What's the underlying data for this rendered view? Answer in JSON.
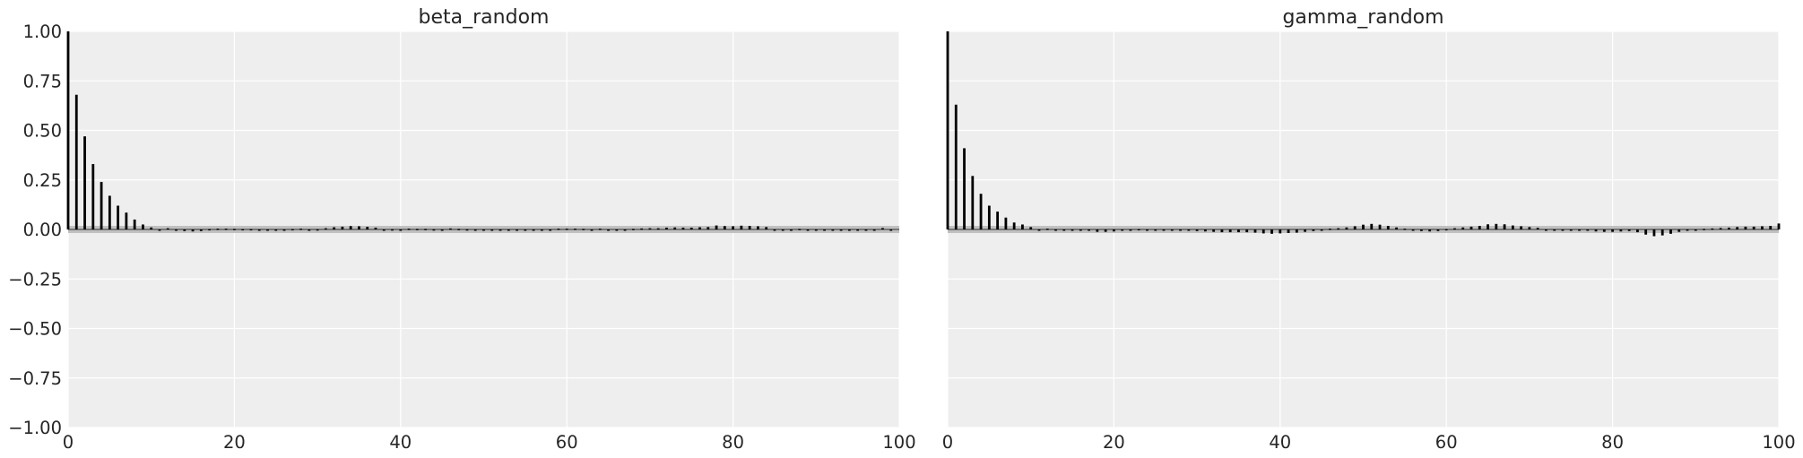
{
  "chart_data": [
    {
      "type": "bar",
      "title": "beta_random",
      "xlabel": "",
      "ylabel": "",
      "xlim": [
        0,
        100
      ],
      "ylim": [
        -1.0,
        1.0
      ],
      "xticks": [
        "0",
        "20",
        "40",
        "60",
        "80",
        "100"
      ],
      "yticks": [
        "1.00",
        "0.75",
        "0.50",
        "0.25",
        "0.00",
        "−0.25",
        "−0.50",
        "−0.75",
        "−1.00"
      ],
      "grid": true,
      "confidence_band": [
        -0.018,
        0.018
      ],
      "x": [
        0,
        1,
        2,
        3,
        4,
        5,
        6,
        7,
        8,
        9,
        10,
        11,
        12,
        13,
        14,
        15,
        16,
        17,
        18,
        19,
        20,
        21,
        22,
        23,
        24,
        25,
        26,
        27,
        28,
        29,
        30,
        31,
        32,
        33,
        34,
        35,
        36,
        37,
        38,
        39,
        40,
        41,
        42,
        43,
        44,
        45,
        46,
        47,
        48,
        49,
        50,
        51,
        52,
        53,
        54,
        55,
        56,
        57,
        58,
        59,
        60,
        61,
        62,
        63,
        64,
        65,
        66,
        67,
        68,
        69,
        70,
        71,
        72,
        73,
        74,
        75,
        76,
        77,
        78,
        79,
        80,
        81,
        82,
        83,
        84,
        85,
        86,
        87,
        88,
        89,
        90,
        91,
        92,
        93,
        94,
        95,
        96,
        97,
        98,
        99
      ],
      "values": [
        1.0,
        0.68,
        0.47,
        0.33,
        0.24,
        0.17,
        0.12,
        0.085,
        0.05,
        0.025,
        0.01,
        0.0,
        0.006,
        -0.004,
        -0.008,
        -0.01,
        -0.008,
        0.002,
        0.004,
        0.004,
        0.003,
        0.002,
        0.002,
        -0.003,
        -0.005,
        -0.004,
        -0.004,
        0.002,
        0.004,
        0.0,
        0.001,
        0.006,
        0.011,
        0.014,
        0.017,
        0.016,
        0.013,
        0.009,
        0.0,
        0.001,
        0.0,
        0.004,
        0.003,
        0.003,
        0.001,
        0.0,
        0.005,
        0.003,
        0.001,
        -0.003,
        -0.004,
        -0.003,
        -0.002,
        0.0,
        0.0,
        -0.003,
        0.0,
        0.0,
        -0.003,
        0.004,
        0.004,
        0.004,
        0.003,
        0.0,
        0.004,
        0.0,
        0.0,
        0.0,
        0.003,
        0.005,
        0.006,
        0.006,
        0.009,
        0.01,
        0.009,
        0.009,
        0.011,
        0.012,
        0.02,
        0.017,
        0.016,
        0.019,
        0.018,
        0.016,
        0.012,
        0.0,
        0.0,
        0.0,
        0.003,
        0.0,
        -0.004,
        -0.004,
        -0.004,
        0.0,
        -0.005,
        -0.006,
        -0.006,
        0.0,
        0.007,
        0.0
      ]
    },
    {
      "type": "bar",
      "title": "gamma_random",
      "xlabel": "",
      "ylabel": "",
      "xlim": [
        0,
        100
      ],
      "ylim": [
        -1.0,
        1.0
      ],
      "xticks": [
        "0",
        "20",
        "40",
        "60",
        "80",
        "100"
      ],
      "yticks": [],
      "grid": true,
      "confidence_band": [
        -0.018,
        0.018
      ],
      "x": [
        0,
        1,
        2,
        3,
        4,
        5,
        6,
        7,
        8,
        9,
        10,
        11,
        12,
        13,
        14,
        15,
        16,
        17,
        18,
        19,
        20,
        21,
        22,
        23,
        24,
        25,
        26,
        27,
        28,
        29,
        30,
        31,
        32,
        33,
        34,
        35,
        36,
        37,
        38,
        39,
        40,
        41,
        42,
        43,
        44,
        45,
        46,
        47,
        48,
        49,
        50,
        51,
        52,
        53,
        54,
        55,
        56,
        57,
        58,
        59,
        60,
        61,
        62,
        63,
        64,
        65,
        66,
        67,
        68,
        69,
        70,
        71,
        72,
        73,
        74,
        75,
        76,
        77,
        78,
        79,
        80,
        81,
        82,
        83,
        84,
        85,
        86,
        87,
        88,
        89,
        90,
        91,
        92,
        93,
        94,
        95,
        96,
        97,
        98,
        99,
        100
      ],
      "values": [
        1.0,
        0.63,
        0.41,
        0.27,
        0.18,
        0.12,
        0.09,
        0.06,
        0.035,
        0.025,
        0.012,
        0.0,
        0.004,
        0.0,
        0.0,
        -0.004,
        -0.004,
        -0.006,
        -0.012,
        -0.012,
        -0.01,
        -0.006,
        0.0,
        0.002,
        0.0,
        -0.002,
        -0.004,
        -0.004,
        -0.006,
        -0.006,
        -0.008,
        -0.01,
        -0.012,
        -0.014,
        -0.014,
        -0.014,
        -0.014,
        -0.016,
        -0.02,
        -0.022,
        -0.02,
        -0.018,
        -0.016,
        -0.012,
        -0.008,
        0.0,
        0.004,
        0.006,
        0.01,
        0.016,
        0.024,
        0.028,
        0.024,
        0.018,
        0.01,
        0.004,
        -0.004,
        -0.008,
        -0.01,
        -0.008,
        0.002,
        0.006,
        0.01,
        0.014,
        0.018,
        0.026,
        0.028,
        0.026,
        0.02,
        0.016,
        0.012,
        0.008,
        0.0,
        -0.006,
        -0.004,
        -0.002,
        0.0,
        -0.006,
        -0.01,
        -0.012,
        -0.012,
        -0.01,
        -0.008,
        -0.014,
        -0.026,
        -0.034,
        -0.03,
        -0.022,
        -0.012,
        -0.004,
        0.0,
        0.003,
        0.005,
        0.007,
        0.009,
        0.012,
        0.014,
        0.014,
        0.016,
        0.018,
        0.03
      ]
    }
  ],
  "colors": {
    "axes_background": "#eeeeee",
    "grid": "#ffffff",
    "bar": "#000000",
    "band": "#c0c0c0",
    "text": "#262626"
  }
}
